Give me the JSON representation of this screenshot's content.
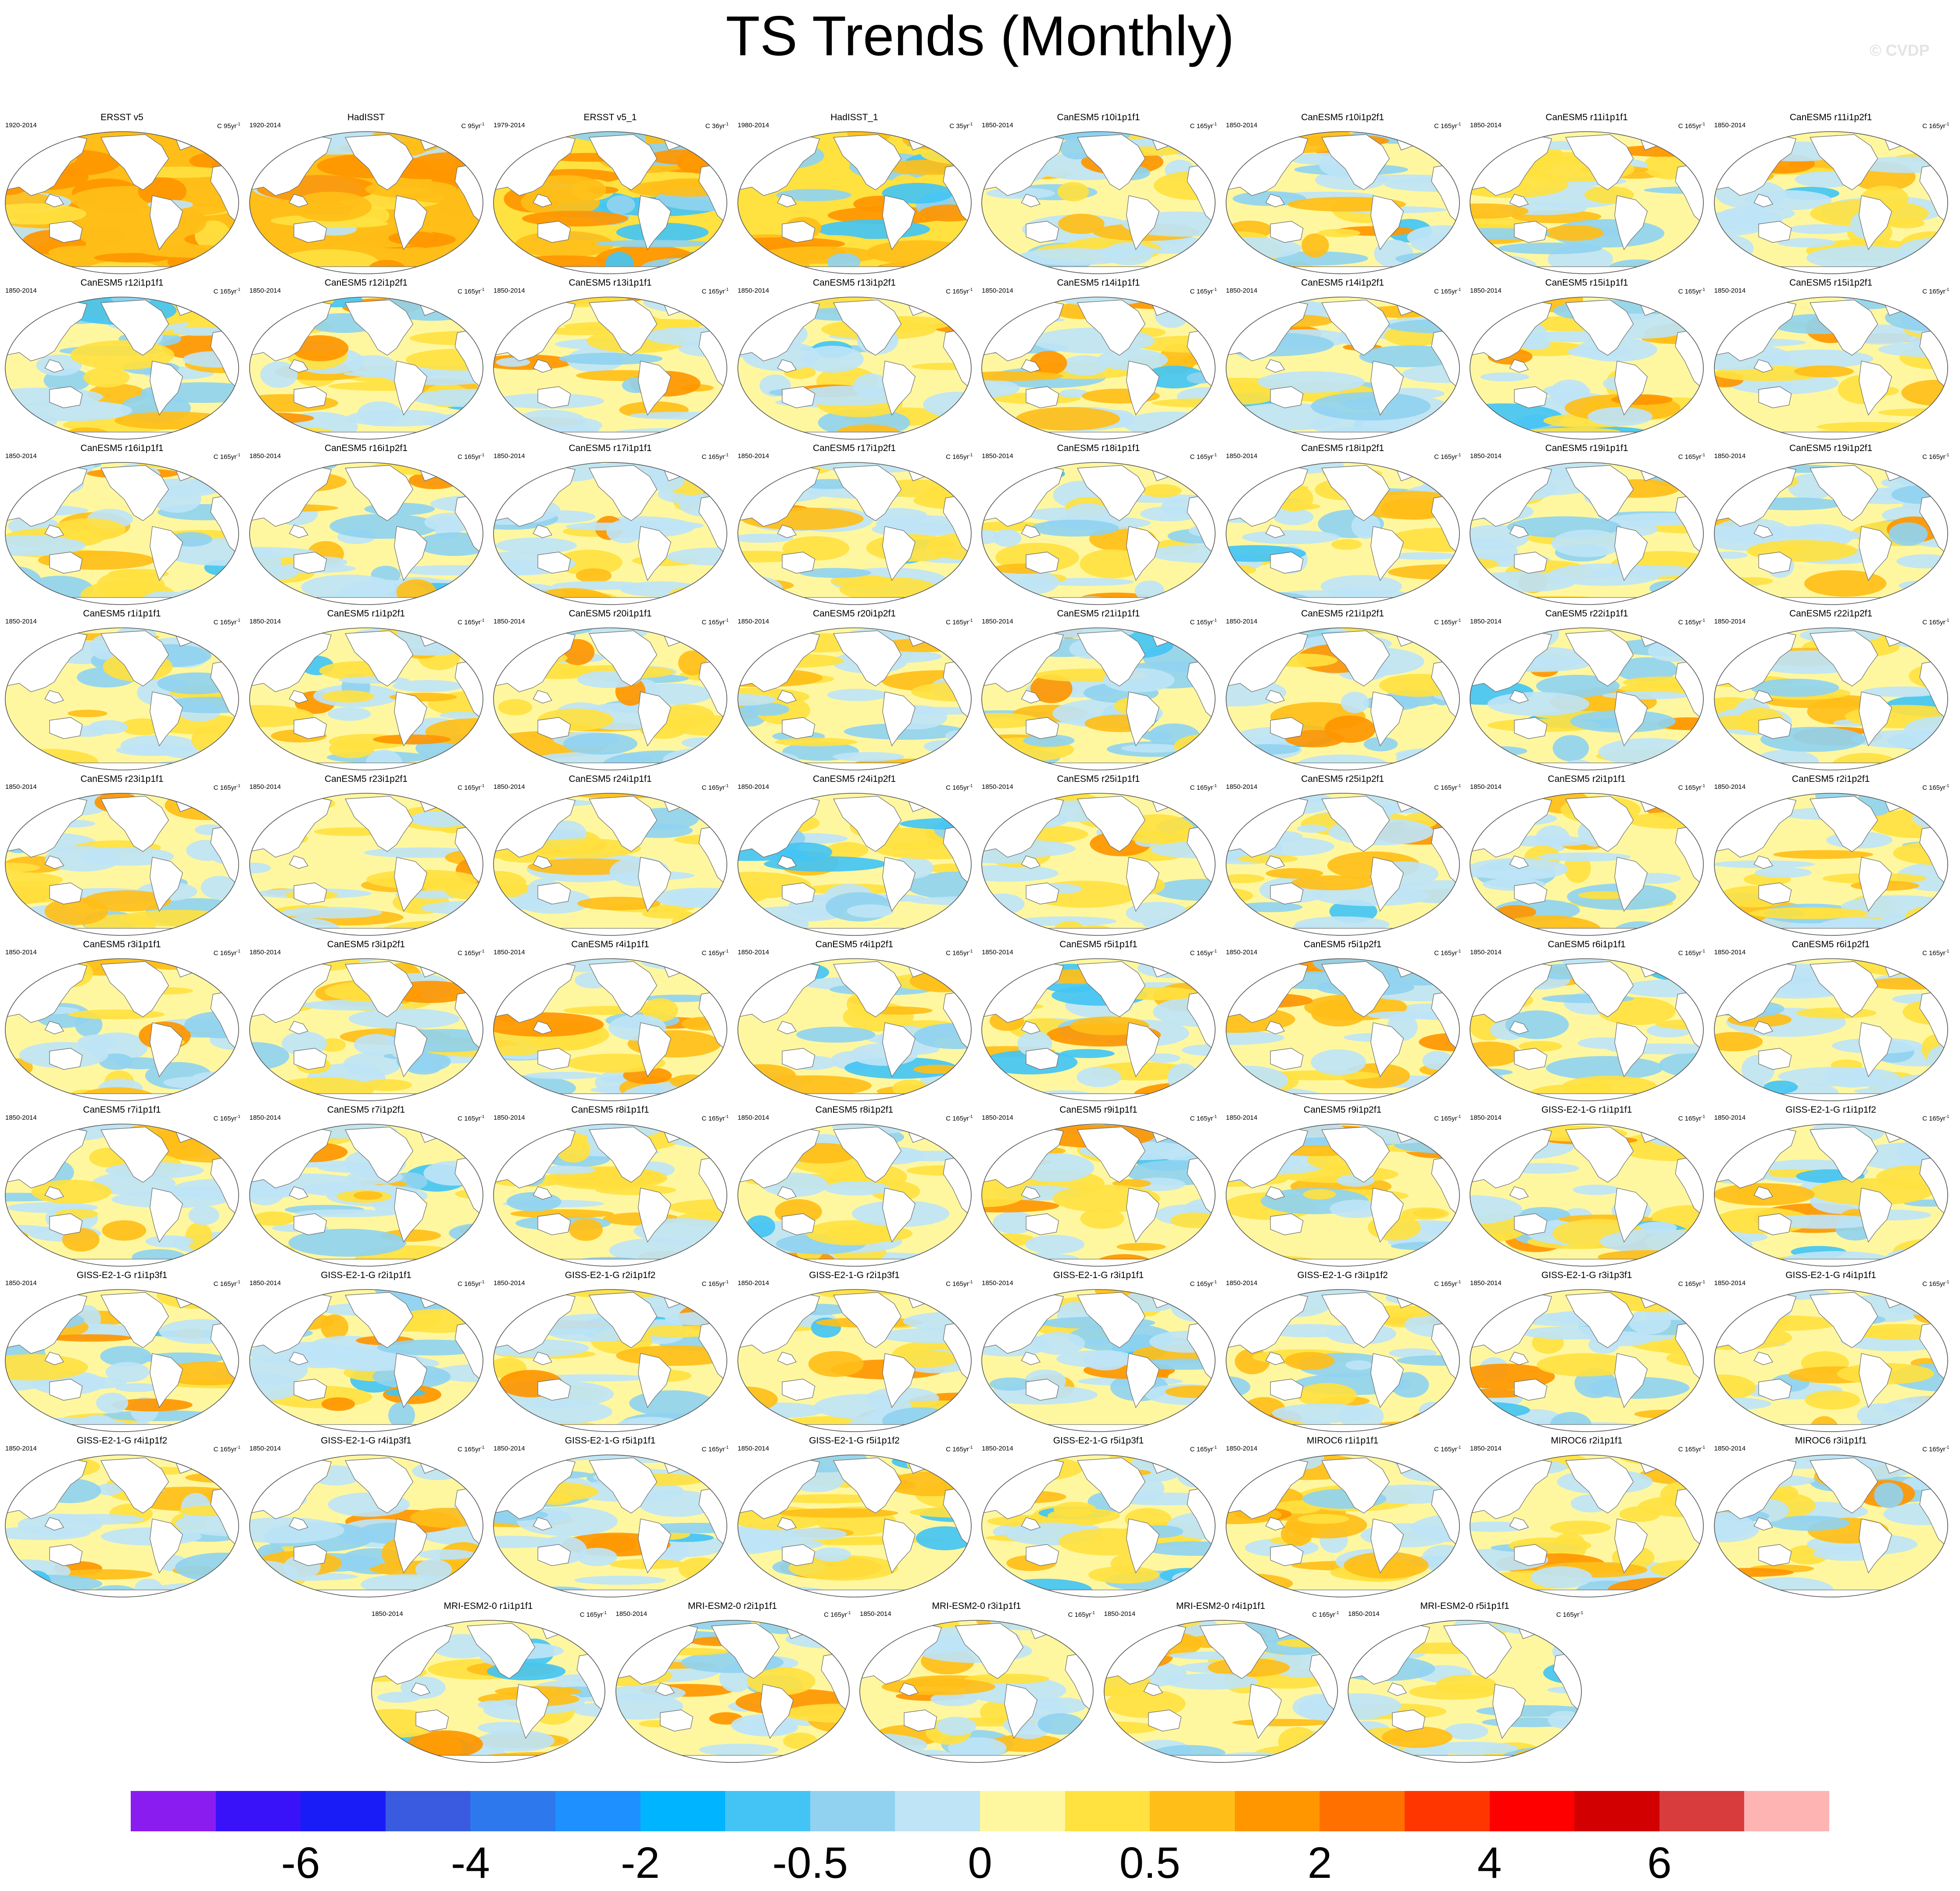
{
  "title": "TS Trends (Monthly)",
  "watermark": "© CVDP",
  "units_suffix": "yr",
  "units_superscript": "-1",
  "colors": {
    "land": "#ffffff",
    "outline": "#555555",
    "coast": "#666666"
  },
  "panels": [
    {
      "title": "ERSST v5",
      "period": "1920-2014",
      "units": "C 95yr",
      "style": "obs_warm"
    },
    {
      "title": "HadISST",
      "period": "1920-2014",
      "units": "C 95yr",
      "style": "obs_warm"
    },
    {
      "title": "ERSST v5_1",
      "period": "1979-2014",
      "units": "C 36yr",
      "style": "obs_mixed"
    },
    {
      "title": "HadISST_1",
      "period": "1980-2014",
      "units": "C 35yr",
      "style": "obs_mixed"
    },
    {
      "title": "CanESM5 r10i1p1f1",
      "period": "1850-2014",
      "units": "C 165yr",
      "style": "model"
    },
    {
      "title": "CanESM5 r10i1p2f1",
      "period": "1850-2014",
      "units": "C 165yr",
      "style": "model"
    },
    {
      "title": "CanESM5 r11i1p1f1",
      "period": "1850-2014",
      "units": "C 165yr",
      "style": "model"
    },
    {
      "title": "CanESM5 r11i1p2f1",
      "period": "1850-2014",
      "units": "C 165yr",
      "style": "model"
    },
    {
      "title": "CanESM5 r12i1p1f1",
      "period": "1850-2014",
      "units": "C 165yr",
      "style": "model"
    },
    {
      "title": "CanESM5 r12i1p2f1",
      "period": "1850-2014",
      "units": "C 165yr",
      "style": "model"
    },
    {
      "title": "CanESM5 r13i1p1f1",
      "period": "1850-2014",
      "units": "C 165yr",
      "style": "model"
    },
    {
      "title": "CanESM5 r13i1p2f1",
      "period": "1850-2014",
      "units": "C 165yr",
      "style": "model"
    },
    {
      "title": "CanESM5 r14i1p1f1",
      "period": "1850-2014",
      "units": "C 165yr",
      "style": "model"
    },
    {
      "title": "CanESM5 r14i1p2f1",
      "period": "1850-2014",
      "units": "C 165yr",
      "style": "model"
    },
    {
      "title": "CanESM5 r15i1p1f1",
      "period": "1850-2014",
      "units": "C 165yr",
      "style": "model"
    },
    {
      "title": "CanESM5 r15i1p2f1",
      "period": "1850-2014",
      "units": "C 165yr",
      "style": "model"
    },
    {
      "title": "CanESM5 r16i1p1f1",
      "period": "1850-2014",
      "units": "C 165yr",
      "style": "model"
    },
    {
      "title": "CanESM5 r16i1p2f1",
      "period": "1850-2014",
      "units": "C 165yr",
      "style": "model"
    },
    {
      "title": "CanESM5 r17i1p1f1",
      "period": "1850-2014",
      "units": "C 165yr",
      "style": "model"
    },
    {
      "title": "CanESM5 r17i1p2f1",
      "period": "1850-2014",
      "units": "C 165yr",
      "style": "model"
    },
    {
      "title": "CanESM5 r18i1p1f1",
      "period": "1850-2014",
      "units": "C 165yr",
      "style": "model"
    },
    {
      "title": "CanESM5 r18i1p2f1",
      "period": "1850-2014",
      "units": "C 165yr",
      "style": "model"
    },
    {
      "title": "CanESM5 r19i1p1f1",
      "period": "1850-2014",
      "units": "C 165yr",
      "style": "model"
    },
    {
      "title": "CanESM5 r19i1p2f1",
      "period": "1850-2014",
      "units": "C 165yr",
      "style": "model"
    },
    {
      "title": "CanESM5 r1i1p1f1",
      "period": "1850-2014",
      "units": "C 165yr",
      "style": "model"
    },
    {
      "title": "CanESM5 r1i1p2f1",
      "period": "1850-2014",
      "units": "C 165yr",
      "style": "model"
    },
    {
      "title": "CanESM5 r20i1p1f1",
      "period": "1850-2014",
      "units": "C 165yr",
      "style": "model"
    },
    {
      "title": "CanESM5 r20i1p2f1",
      "period": "1850-2014",
      "units": "C 165yr",
      "style": "model"
    },
    {
      "title": "CanESM5 r21i1p1f1",
      "period": "1850-2014",
      "units": "C 165yr",
      "style": "model"
    },
    {
      "title": "CanESM5 r21i1p2f1",
      "period": "1850-2014",
      "units": "C 165yr",
      "style": "model"
    },
    {
      "title": "CanESM5 r22i1p1f1",
      "period": "1850-2014",
      "units": "C 165yr",
      "style": "model"
    },
    {
      "title": "CanESM5 r22i1p2f1",
      "period": "1850-2014",
      "units": "C 165yr",
      "style": "model"
    },
    {
      "title": "CanESM5 r23i1p1f1",
      "period": "1850-2014",
      "units": "C 165yr",
      "style": "model"
    },
    {
      "title": "CanESM5 r23i1p2f1",
      "period": "1850-2014",
      "units": "C 165yr",
      "style": "model"
    },
    {
      "title": "CanESM5 r24i1p1f1",
      "period": "1850-2014",
      "units": "C 165yr",
      "style": "model"
    },
    {
      "title": "CanESM5 r24i1p2f1",
      "period": "1850-2014",
      "units": "C 165yr",
      "style": "model"
    },
    {
      "title": "CanESM5 r25i1p1f1",
      "period": "1850-2014",
      "units": "C 165yr",
      "style": "model"
    },
    {
      "title": "CanESM5 r25i1p2f1",
      "period": "1850-2014",
      "units": "C 165yr",
      "style": "model"
    },
    {
      "title": "CanESM5 r2i1p1f1",
      "period": "1850-2014",
      "units": "C 165yr",
      "style": "model"
    },
    {
      "title": "CanESM5 r2i1p2f1",
      "period": "1850-2014",
      "units": "C 165yr",
      "style": "model"
    },
    {
      "title": "CanESM5 r3i1p1f1",
      "period": "1850-2014",
      "units": "C 165yr",
      "style": "model"
    },
    {
      "title": "CanESM5 r3i1p2f1",
      "period": "1850-2014",
      "units": "C 165yr",
      "style": "model"
    },
    {
      "title": "CanESM5 r4i1p1f1",
      "period": "1850-2014",
      "units": "C 165yr",
      "style": "model"
    },
    {
      "title": "CanESM5 r4i1p2f1",
      "period": "1850-2014",
      "units": "C 165yr",
      "style": "model"
    },
    {
      "title": "CanESM5 r5i1p1f1",
      "period": "1850-2014",
      "units": "C 165yr",
      "style": "model"
    },
    {
      "title": "CanESM5 r5i1p2f1",
      "period": "1850-2014",
      "units": "C 165yr",
      "style": "model"
    },
    {
      "title": "CanESM5 r6i1p1f1",
      "period": "1850-2014",
      "units": "C 165yr",
      "style": "model"
    },
    {
      "title": "CanESM5 r6i1p2f1",
      "period": "1850-2014",
      "units": "C 165yr",
      "style": "model"
    },
    {
      "title": "CanESM5 r7i1p1f1",
      "period": "1850-2014",
      "units": "C 165yr",
      "style": "model"
    },
    {
      "title": "CanESM5 r7i1p2f1",
      "period": "1850-2014",
      "units": "C 165yr",
      "style": "model"
    },
    {
      "title": "CanESM5 r8i1p1f1",
      "period": "1850-2014",
      "units": "C 165yr",
      "style": "model"
    },
    {
      "title": "CanESM5 r8i1p2f1",
      "period": "1850-2014",
      "units": "C 165yr",
      "style": "model"
    },
    {
      "title": "CanESM5 r9i1p1f1",
      "period": "1850-2014",
      "units": "C 165yr",
      "style": "model"
    },
    {
      "title": "CanESM5 r9i1p2f1",
      "period": "1850-2014",
      "units": "C 165yr",
      "style": "model"
    },
    {
      "title": "GISS-E2-1-G r1i1p1f1",
      "period": "1850-2014",
      "units": "C 165yr",
      "style": "model"
    },
    {
      "title": "GISS-E2-1-G r1i1p1f2",
      "period": "1850-2014",
      "units": "C 165yr",
      "style": "model"
    },
    {
      "title": "GISS-E2-1-G r1i1p3f1",
      "period": "1850-2014",
      "units": "C 165yr",
      "style": "model"
    },
    {
      "title": "GISS-E2-1-G r2i1p1f1",
      "period": "1850-2014",
      "units": "C 165yr",
      "style": "model"
    },
    {
      "title": "GISS-E2-1-G r2i1p1f2",
      "period": "1850-2014",
      "units": "C 165yr",
      "style": "model"
    },
    {
      "title": "GISS-E2-1-G r2i1p3f1",
      "period": "1850-2014",
      "units": "C 165yr",
      "style": "model"
    },
    {
      "title": "GISS-E2-1-G r3i1p1f1",
      "period": "1850-2014",
      "units": "C 165yr",
      "style": "model"
    },
    {
      "title": "GISS-E2-1-G r3i1p1f2",
      "period": "1850-2014",
      "units": "C 165yr",
      "style": "model"
    },
    {
      "title": "GISS-E2-1-G r3i1p3f1",
      "period": "1850-2014",
      "units": "C 165yr",
      "style": "model"
    },
    {
      "title": "GISS-E2-1-G r4i1p1f1",
      "period": "1850-2014",
      "units": "C 165yr",
      "style": "model"
    },
    {
      "title": "GISS-E2-1-G r4i1p1f2",
      "period": "1850-2014",
      "units": "C 165yr",
      "style": "model"
    },
    {
      "title": "GISS-E2-1-G r4i1p3f1",
      "period": "1850-2014",
      "units": "C 165yr",
      "style": "model"
    },
    {
      "title": "GISS-E2-1-G r5i1p1f1",
      "period": "1850-2014",
      "units": "C 165yr",
      "style": "model"
    },
    {
      "title": "GISS-E2-1-G r5i1p1f2",
      "period": "1850-2014",
      "units": "C 165yr",
      "style": "model"
    },
    {
      "title": "GISS-E2-1-G r5i1p3f1",
      "period": "1850-2014",
      "units": "C 165yr",
      "style": "model"
    },
    {
      "title": "MIROC6 r1i1p1f1",
      "period": "1850-2014",
      "units": "C 165yr",
      "style": "model"
    },
    {
      "title": "MIROC6 r2i1p1f1",
      "period": "1850-2014",
      "units": "C 165yr",
      "style": "model"
    },
    {
      "title": "MIROC6 r3i1p1f1",
      "period": "1850-2014",
      "units": "C 165yr",
      "style": "model"
    },
    {
      "title": "MRI-ESM2-0 r1i1p1f1",
      "period": "1850-2014",
      "units": "C 165yr",
      "style": "model"
    },
    {
      "title": "MRI-ESM2-0 r2i1p1f1",
      "period": "1850-2014",
      "units": "C 165yr",
      "style": "model"
    },
    {
      "title": "MRI-ESM2-0 r3i1p1f1",
      "period": "1850-2014",
      "units": "C 165yr",
      "style": "model"
    },
    {
      "title": "MRI-ESM2-0 r4i1p1f1",
      "period": "1850-2014",
      "units": "C 165yr",
      "style": "model"
    },
    {
      "title": "MRI-ESM2-0 r5i1p1f1",
      "period": "1850-2014",
      "units": "C 165yr",
      "style": "model"
    }
  ],
  "colorbar": {
    "colors": [
      "#8a1cf0",
      "#3a12fa",
      "#1a1cf8",
      "#3a5ae0",
      "#2e78ee",
      "#1e90ff",
      "#00b4ff",
      "#44c4f4",
      "#90d2f0",
      "#bee4f6",
      "#fff7a0",
      "#ffe140",
      "#ffbe18",
      "#ff9600",
      "#ff7000",
      "#ff3600",
      "#ff0000",
      "#d20000",
      "#d83c3c",
      "#ffb4b4"
    ],
    "labels": [
      "-6",
      "-4",
      "-2",
      "-0.5",
      "0",
      "0.5",
      "2",
      "4",
      "6"
    ]
  }
}
